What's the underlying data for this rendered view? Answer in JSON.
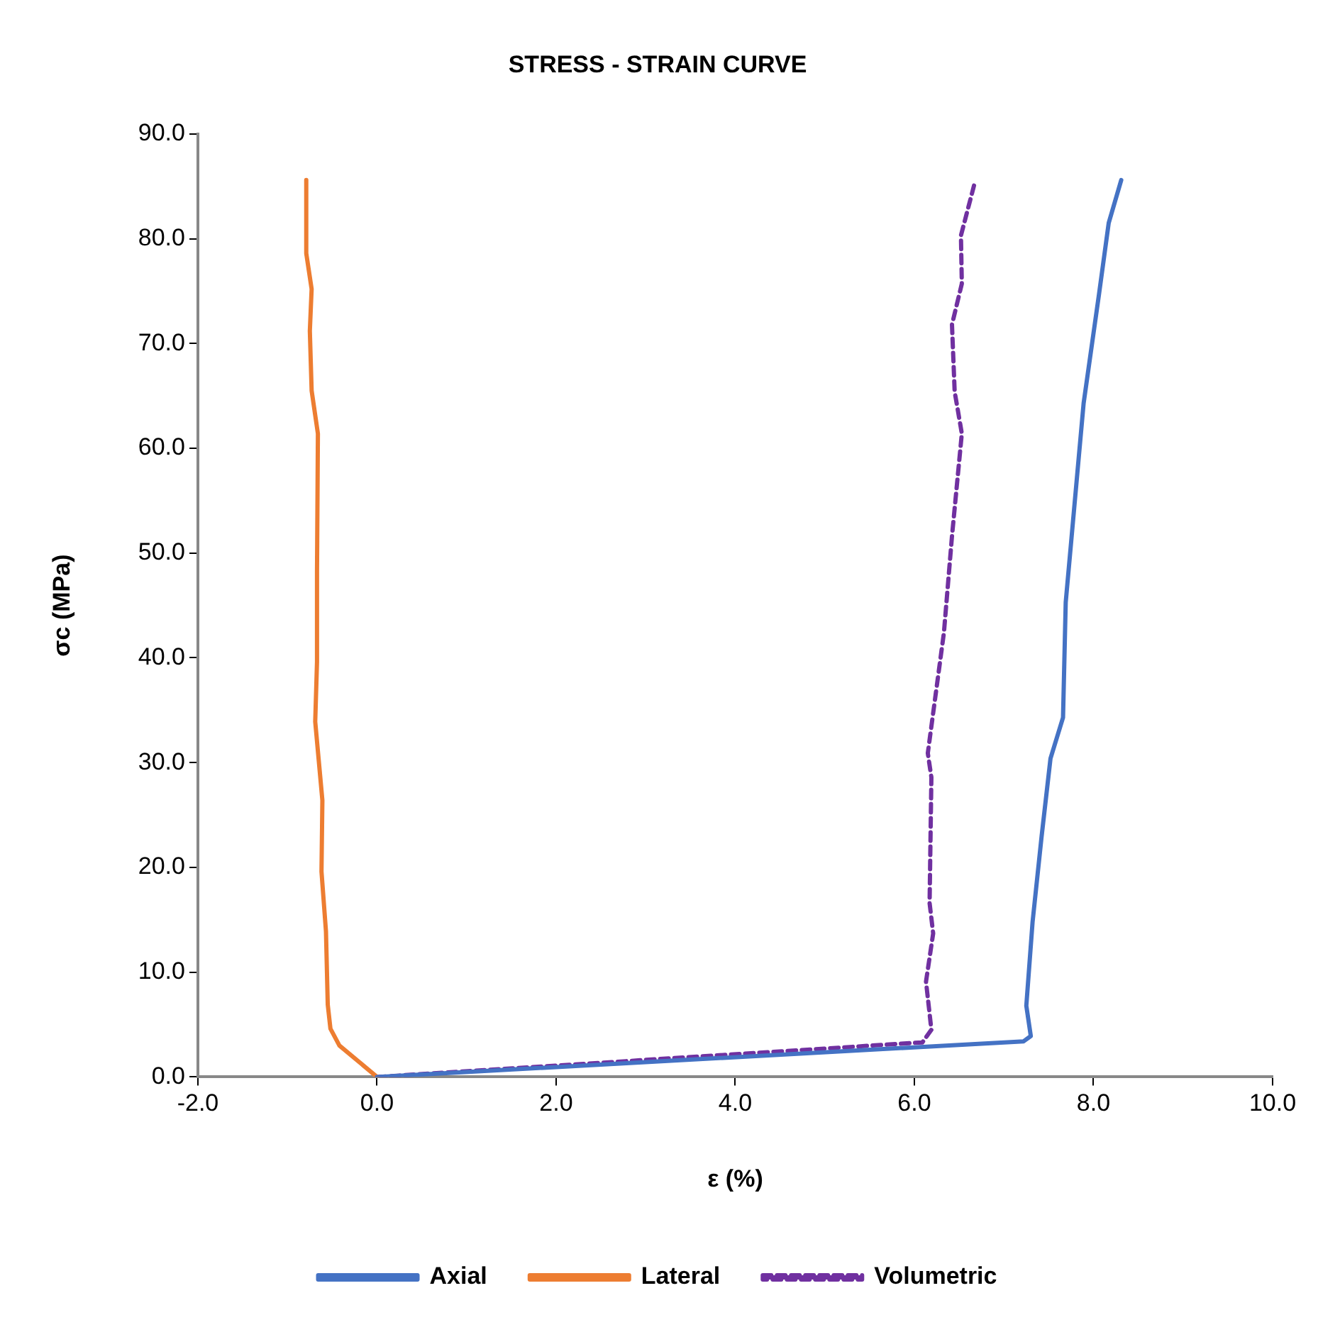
{
  "chart_data": {
    "type": "line",
    "title": "STRESS - STRAIN CURVE",
    "xlabel": "ε (%)",
    "ylabel": "σc (MPa)",
    "xlim": [
      -2,
      10
    ],
    "xticks": [
      {
        "value": -2,
        "label": "-2.0"
      },
      {
        "value": 0,
        "label": "0.0"
      },
      {
        "value": 2,
        "label": "2.0"
      },
      {
        "value": 4,
        "label": "4.0"
      },
      {
        "value": 6,
        "label": "6.0"
      },
      {
        "value": 8,
        "label": "8.0"
      },
      {
        "value": 10,
        "label": "10.0"
      }
    ],
    "ylim": [
      0,
      90
    ],
    "yticks": [
      {
        "value": 0,
        "label": "0.0"
      },
      {
        "value": 10,
        "label": "10.0"
      },
      {
        "value": 20,
        "label": "20.0"
      },
      {
        "value": 30,
        "label": "30.0"
      },
      {
        "value": 40,
        "label": "40.0"
      },
      {
        "value": 50,
        "label": "50.0"
      },
      {
        "value": 60,
        "label": "60.0"
      },
      {
        "value": 70,
        "label": "70.0"
      },
      {
        "value": 80,
        "label": "80.0"
      },
      {
        "value": 90,
        "label": "90.0"
      }
    ],
    "grid": false,
    "legend": "bottom",
    "marker": "none",
    "series": [
      {
        "name": "Axial",
        "color": "#4472c4",
        "line_style": "solid",
        "x": [
          0,
          7.22,
          7.3,
          7.25,
          7.32,
          7.42,
          7.52,
          7.66,
          7.69,
          7.89,
          8.06,
          8.17,
          8.31
        ],
        "values": [
          0,
          3.4,
          3.9,
          6.8,
          14.8,
          22.9,
          30.4,
          34.3,
          45.3,
          64.3,
          74.6,
          81.5,
          85.6
        ]
      },
      {
        "name": "Lateral",
        "color": "#ed7d31",
        "line_style": "solid",
        "x": [
          0,
          -0.42,
          -0.52,
          -0.55,
          -0.57,
          -0.62,
          -0.61,
          -0.69,
          -0.67,
          -0.67,
          -0.66,
          -0.73,
          -0.75,
          -0.73,
          -0.79,
          -0.79
        ],
        "values": [
          0,
          3,
          4.6,
          6.9,
          13.9,
          19.6,
          26.4,
          33.9,
          39.6,
          48.2,
          61.4,
          65.5,
          71.2,
          75.2,
          78.6,
          85.6
        ]
      },
      {
        "name": "Volumetric",
        "color": "#7030a0",
        "line_style": "dashed",
        "x": [
          0,
          6.09,
          6.19,
          6.13,
          6.21,
          6.17,
          6.19,
          6.15,
          6.33,
          6.42,
          6.53,
          6.45,
          6.42,
          6.53,
          6.52,
          6.67
        ],
        "values": [
          0,
          3.3,
          4.5,
          9.1,
          13.7,
          16.6,
          28.6,
          30.9,
          42.4,
          51.6,
          61.4,
          65.4,
          71.8,
          75.7,
          80.3,
          85.2
        ]
      }
    ]
  }
}
